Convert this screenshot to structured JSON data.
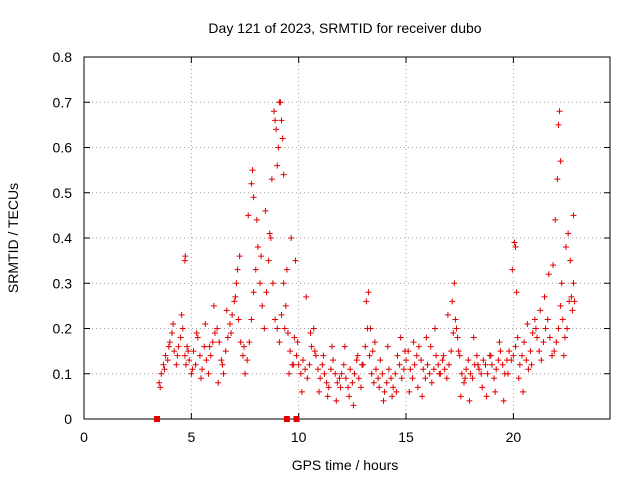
{
  "chart_data": {
    "type": "scatter",
    "title": "Day 121 of 2023, SRMTID for receiver dubo",
    "xlabel": "GPS time / hours",
    "ylabel": "SRMTID / TECUs",
    "xlim": [
      0,
      24.5
    ],
    "ylim": [
      0,
      0.8
    ],
    "xticks": [
      0,
      5,
      10,
      15,
      20
    ],
    "xtick_labels": [
      "0",
      "5",
      "10",
      "15",
      "20"
    ],
    "yticks": [
      0,
      0.1,
      0.2,
      0.3,
      0.4,
      0.5,
      0.6,
      0.7,
      0.8
    ],
    "ytick_labels": [
      "0",
      "0.1",
      "0.2",
      "0.3",
      "0.4",
      "0.5",
      "0.6",
      "0.7",
      "0.8"
    ],
    "grid": true,
    "marker": "+",
    "color": "#e00000",
    "series": [
      {
        "name": "SRMTID",
        "x": [
          3.5,
          3.6,
          3.7,
          3.8,
          3.9,
          4.0,
          4.1,
          4.2,
          4.3,
          4.4,
          4.5,
          4.6,
          4.7,
          4.75,
          4.8,
          4.9,
          5.0,
          5.1,
          5.2,
          5.3,
          5.4,
          5.5,
          5.6,
          5.7,
          5.8,
          5.9,
          6.0,
          6.1,
          6.2,
          6.3,
          6.4,
          6.5,
          6.6,
          6.7,
          6.8,
          6.9,
          7.0,
          7.1,
          7.2,
          7.3,
          7.4,
          7.5,
          7.6,
          7.7,
          7.8,
          7.9,
          8.0,
          8.1,
          8.2,
          8.3,
          8.4,
          8.5,
          8.6,
          8.7,
          8.8,
          8.9,
          9.0,
          9.1,
          9.2,
          9.3,
          9.4,
          9.5,
          9.6,
          9.7,
          9.8,
          9.9,
          10.0,
          10.1,
          10.2,
          10.3,
          10.4,
          10.5,
          10.6,
          10.7,
          10.8,
          10.9,
          11.0,
          11.1,
          11.2,
          11.3,
          11.4,
          11.5,
          11.6,
          11.7,
          11.8,
          11.9,
          12.0,
          12.1,
          12.2,
          12.3,
          12.4,
          12.5,
          12.6,
          12.7,
          12.8,
          12.9,
          13.0,
          13.1,
          13.2,
          13.3,
          13.4,
          13.5,
          13.6,
          13.7,
          13.8,
          13.9,
          14.0,
          14.1,
          14.2,
          14.3,
          14.4,
          14.5,
          14.6,
          14.7,
          14.8,
          14.9,
          15.0,
          15.1,
          15.2,
          15.3,
          15.4,
          15.5,
          15.6,
          15.7,
          15.8,
          15.9,
          16.0,
          16.1,
          16.2,
          16.3,
          16.4,
          16.5,
          16.6,
          16.7,
          16.8,
          16.9,
          17.0,
          17.1,
          17.2,
          17.3,
          17.4,
          17.5,
          17.6,
          17.7,
          17.8,
          17.9,
          18.0,
          18.1,
          18.2,
          18.3,
          18.4,
          18.5,
          18.6,
          18.7,
          18.8,
          18.9,
          19.0,
          19.1,
          19.2,
          19.3,
          19.4,
          19.5,
          19.6,
          19.7,
          19.8,
          19.9,
          20.0,
          20.1,
          20.2,
          20.3,
          20.4,
          20.5,
          20.6,
          20.7,
          20.8,
          20.9,
          21.0,
          21.1,
          21.2,
          21.3,
          21.4,
          21.5,
          21.6,
          21.7,
          21.8,
          21.9,
          22.0,
          22.1,
          22.2,
          22.3,
          22.4,
          22.5,
          22.6,
          22.7,
          22.8,
          3.55,
          3.75,
          3.95,
          4.15,
          4.35,
          4.55,
          4.7,
          4.72,
          4.85,
          5.05,
          5.25,
          5.45,
          5.65,
          5.85,
          6.05,
          6.25,
          6.45,
          6.65,
          6.85,
          7.05,
          7.15,
          7.25,
          7.45,
          7.65,
          7.8,
          7.85,
          7.9,
          8.05,
          8.25,
          8.45,
          8.65,
          8.75,
          8.85,
          8.9,
          8.95,
          9.0,
          9.05,
          9.1,
          9.15,
          9.2,
          9.25,
          9.3,
          9.35,
          9.45,
          9.55,
          9.65,
          9.75,
          9.85,
          9.95,
          10.15,
          10.35,
          10.55,
          10.75,
          10.95,
          11.15,
          11.35,
          11.55,
          11.75,
          11.95,
          12.15,
          12.35,
          12.55,
          12.75,
          12.95,
          13.15,
          13.25,
          13.35,
          13.45,
          13.55,
          13.75,
          13.95,
          14.15,
          14.35,
          14.55,
          14.75,
          14.95,
          15.15,
          15.35,
          15.55,
          15.75,
          15.95,
          16.15,
          16.35,
          16.55,
          16.75,
          16.95,
          17.15,
          17.25,
          17.35,
          17.45,
          17.55,
          17.75,
          17.95,
          18.15,
          18.35,
          18.55,
          18.75,
          18.95,
          19.15,
          19.35,
          19.55,
          19.75,
          19.95,
          20.05,
          20.1,
          20.15,
          20.25,
          20.45,
          20.65,
          20.85,
          21.05,
          21.25,
          21.45,
          21.65,
          21.85,
          21.95,
          22.05,
          22.1,
          22.15,
          22.2,
          22.25,
          22.35,
          22.45,
          22.55,
          22.65,
          22.75,
          22.8,
          22.85
        ],
        "y": [
          0.08,
          0.1,
          0.12,
          0.14,
          0.13,
          0.17,
          0.19,
          0.15,
          0.12,
          0.16,
          0.18,
          0.2,
          0.14,
          0.12,
          0.16,
          0.13,
          0.1,
          0.15,
          0.12,
          0.18,
          0.14,
          0.11,
          0.16,
          0.13,
          0.1,
          0.14,
          0.17,
          0.19,
          0.2,
          0.17,
          0.13,
          0.1,
          0.15,
          0.18,
          0.21,
          0.23,
          0.26,
          0.3,
          0.22,
          0.17,
          0.14,
          0.1,
          0.13,
          0.17,
          0.22,
          0.28,
          0.33,
          0.38,
          0.3,
          0.25,
          0.2,
          0.28,
          0.35,
          0.4,
          0.3,
          0.22,
          0.2,
          0.17,
          0.23,
          0.3,
          0.25,
          0.19,
          0.15,
          0.12,
          0.18,
          0.14,
          0.12,
          0.1,
          0.13,
          0.11,
          0.09,
          0.12,
          0.16,
          0.2,
          0.14,
          0.11,
          0.09,
          0.12,
          0.1,
          0.08,
          0.07,
          0.11,
          0.13,
          0.1,
          0.08,
          0.09,
          0.1,
          0.12,
          0.09,
          0.07,
          0.11,
          0.08,
          0.1,
          0.13,
          0.09,
          0.07,
          0.12,
          0.16,
          0.2,
          0.14,
          0.1,
          0.08,
          0.11,
          0.09,
          0.13,
          0.1,
          0.06,
          0.08,
          0.11,
          0.09,
          0.07,
          0.1,
          0.14,
          0.12,
          0.09,
          0.11,
          0.13,
          0.15,
          0.11,
          0.09,
          0.12,
          0.14,
          0.16,
          0.13,
          0.11,
          0.09,
          0.12,
          0.1,
          0.08,
          0.11,
          0.14,
          0.12,
          0.1,
          0.13,
          0.11,
          0.09,
          0.12,
          0.15,
          0.19,
          0.22,
          0.18,
          0.14,
          0.1,
          0.08,
          0.11,
          0.13,
          0.1,
          0.09,
          0.12,
          0.14,
          0.11,
          0.1,
          0.13,
          0.12,
          0.1,
          0.14,
          0.12,
          0.09,
          0.11,
          0.13,
          0.15,
          0.12,
          0.1,
          0.13,
          0.15,
          0.13,
          0.14,
          0.16,
          0.18,
          0.12,
          0.14,
          0.17,
          0.13,
          0.11,
          0.15,
          0.19,
          0.22,
          0.18,
          0.15,
          0.13,
          0.17,
          0.2,
          0.22,
          0.18,
          0.14,
          0.15,
          0.17,
          0.2,
          0.25,
          0.22,
          0.18,
          0.2,
          0.26,
          0.27,
          0.3,
          0.07,
          0.11,
          0.16,
          0.21,
          0.14,
          0.23,
          0.35,
          0.36,
          0.15,
          0.11,
          0.19,
          0.09,
          0.21,
          0.16,
          0.25,
          0.08,
          0.12,
          0.24,
          0.19,
          0.27,
          0.33,
          0.36,
          0.16,
          0.45,
          0.52,
          0.55,
          0.49,
          0.44,
          0.36,
          0.46,
          0.41,
          0.53,
          0.68,
          0.66,
          0.64,
          0.56,
          0.6,
          0.7,
          0.7,
          0.66,
          0.62,
          0.54,
          0.2,
          0.33,
          0.1,
          0.4,
          0.12,
          0.35,
          0.17,
          0.06,
          0.27,
          0.19,
          0.15,
          0.06,
          0.14,
          0.05,
          0.16,
          0.04,
          0.07,
          0.16,
          0.05,
          0.03,
          0.14,
          0.12,
          0.26,
          0.28,
          0.2,
          0.15,
          0.17,
          0.07,
          0.04,
          0.16,
          0.05,
          0.06,
          0.18,
          0.15,
          0.06,
          0.17,
          0.07,
          0.05,
          0.18,
          0.16,
          0.2,
          0.1,
          0.14,
          0.23,
          0.26,
          0.3,
          0.2,
          0.15,
          0.05,
          0.09,
          0.04,
          0.18,
          0.12,
          0.07,
          0.05,
          0.14,
          0.06,
          0.17,
          0.04,
          0.1,
          0.33,
          0.39,
          0.38,
          0.28,
          0.09,
          0.06,
          0.21,
          0.12,
          0.2,
          0.24,
          0.27,
          0.32,
          0.34,
          0.44,
          0.53,
          0.65,
          0.68,
          0.57,
          0.3,
          0.14,
          0.38,
          0.41,
          0.35,
          0.24,
          0.45,
          0.26
        ]
      }
    ],
    "flags": {
      "name": "gap markers",
      "x": [
        3.4,
        9.45,
        9.9
      ],
      "y": [
        0,
        0,
        0
      ]
    }
  }
}
